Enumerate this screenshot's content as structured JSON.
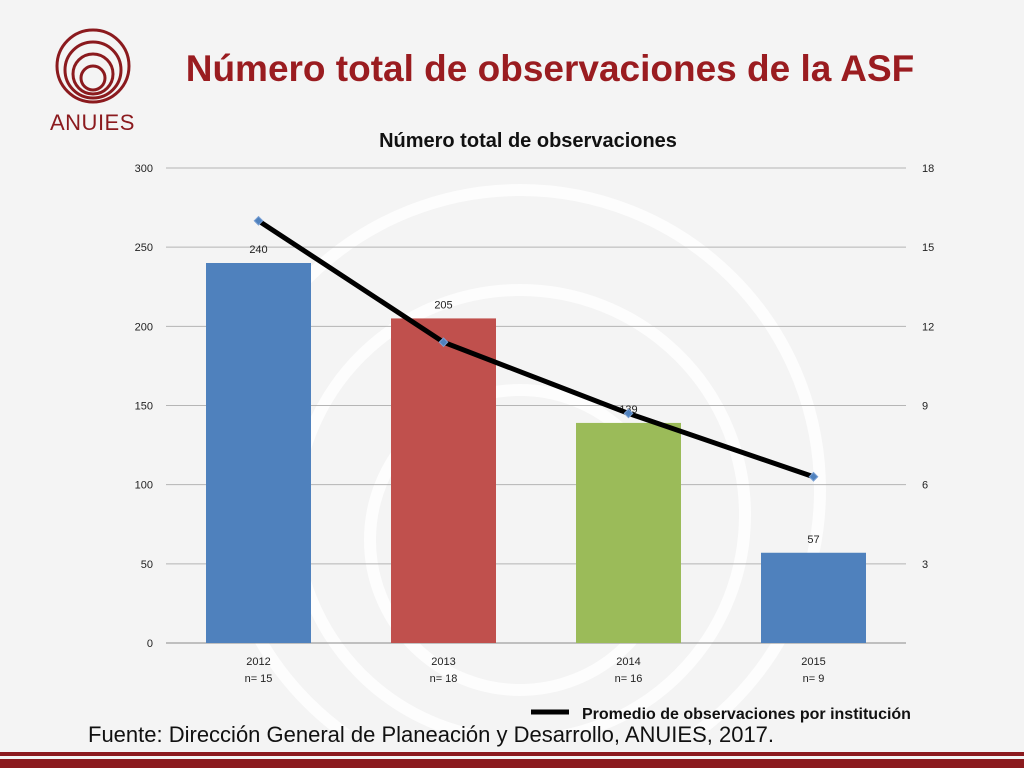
{
  "header": {
    "title": "Número total de observaciones de la ASF",
    "logo_text": "ANUIES"
  },
  "footer": {
    "source": "Fuente: Dirección General de Planeación y Desarrollo, ANUIES, 2017."
  },
  "colors": {
    "brand": "#8b1a1e",
    "title": "#9a1c20",
    "line": "#000000"
  },
  "chart_data": {
    "type": "bar",
    "title": "Número total de observaciones",
    "categories": [
      "2012",
      "2013",
      "2014",
      "2015"
    ],
    "category_sublabels": [
      "n= 15",
      "n= 18",
      "n= 16",
      "n= 9"
    ],
    "values": [
      240,
      205,
      139,
      57
    ],
    "data_labels": [
      "240",
      "205",
      "139",
      "57"
    ],
    "bar_colors": [
      "#4f81bd",
      "#c0504d",
      "#9bbb59",
      "#4f81bd"
    ],
    "ylim": [
      0,
      300
    ],
    "yticks": [
      0,
      50,
      100,
      150,
      200,
      250,
      300
    ],
    "y2lim": [
      0,
      18
    ],
    "y2ticks": [
      3,
      6,
      9,
      12,
      15,
      18
    ],
    "series": [
      {
        "name": "Promedio de observaciones por institución",
        "type": "line",
        "axis": "secondary",
        "values": [
          16.0,
          11.4,
          8.7,
          6.3
        ]
      }
    ],
    "legend": "bottom-right",
    "grid": true
  }
}
